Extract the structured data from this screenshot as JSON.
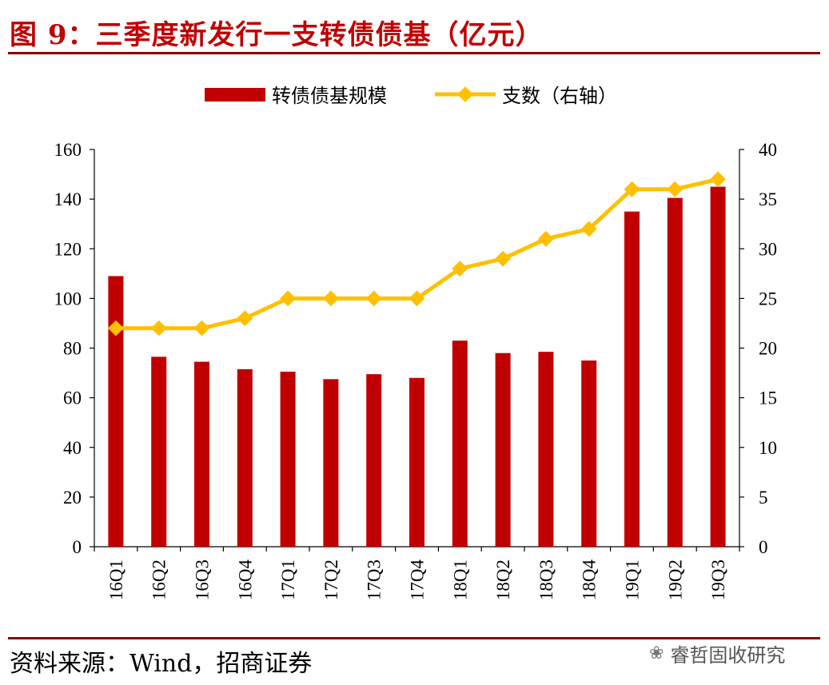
{
  "title": "图 9：三季度新发行一支转债债基（亿元）",
  "source": "资料来源：Wind，招商证券",
  "watermark": "睿哲固收研究",
  "watermark_icon": "wechat-icon",
  "colors": {
    "bar": "#c00000",
    "line": "#ffc000",
    "title": "#c00000",
    "rule": "#8b0000"
  },
  "chart_data": {
    "type": "bar",
    "title": "三季度新发行一支转债债基（亿元）",
    "categories": [
      "16Q1",
      "16Q2",
      "16Q3",
      "16Q4",
      "17Q1",
      "17Q2",
      "17Q3",
      "17Q4",
      "18Q1",
      "18Q2",
      "18Q3",
      "18Q4",
      "19Q1",
      "19Q2",
      "19Q3"
    ],
    "series": [
      {
        "name": "转债债基规模",
        "type": "bar",
        "axis": "left",
        "values": [
          109,
          76.5,
          74.5,
          71.5,
          70.5,
          67.5,
          69.5,
          68,
          83,
          78,
          78.5,
          75,
          135,
          140.5,
          145
        ]
      },
      {
        "name": "支数（右轴）",
        "type": "line",
        "axis": "right",
        "values": [
          22,
          22,
          22,
          23,
          25,
          25,
          25,
          25,
          28,
          29,
          31,
          32,
          36,
          36,
          37
        ]
      }
    ],
    "ylim": [
      0,
      160
    ],
    "yticks": [
      "0",
      "20",
      "40",
      "60",
      "80",
      "100",
      "120",
      "140",
      "160"
    ],
    "y2lim": [
      0,
      40
    ],
    "y2ticks": [
      "0",
      "5",
      "10",
      "15",
      "20",
      "25",
      "30",
      "35",
      "40"
    ],
    "legend_position": "top-center",
    "grid": false
  }
}
